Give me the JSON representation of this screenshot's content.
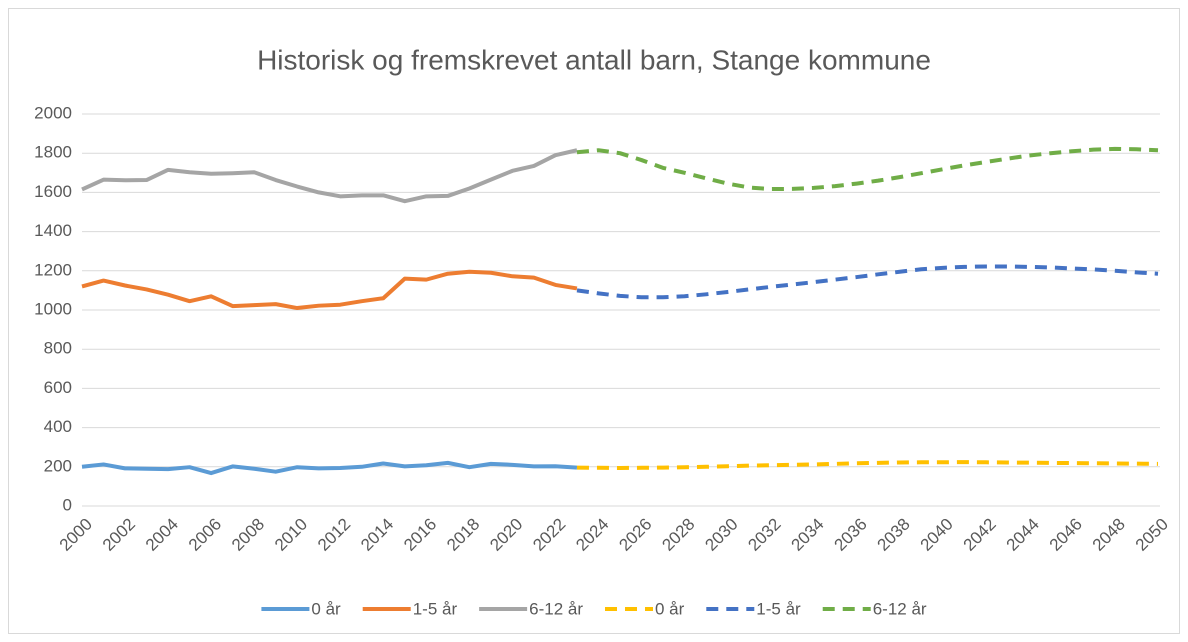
{
  "chart_data": {
    "type": "line",
    "title": "Historisk og fremskrevet antall barn, Stange kommune",
    "x": [
      2000,
      2001,
      2002,
      2003,
      2004,
      2005,
      2006,
      2007,
      2008,
      2009,
      2010,
      2011,
      2012,
      2013,
      2014,
      2015,
      2016,
      2017,
      2018,
      2019,
      2020,
      2021,
      2022,
      2023,
      2024,
      2025,
      2026,
      2027,
      2028,
      2029,
      2030,
      2031,
      2032,
      2033,
      2034,
      2035,
      2036,
      2037,
      2038,
      2039,
      2040,
      2041,
      2042,
      2043,
      2044,
      2045,
      2046,
      2047,
      2048,
      2049,
      2050
    ],
    "xlim": [
      2000,
      2050
    ],
    "xticks": [
      2000,
      2002,
      2004,
      2006,
      2008,
      2010,
      2012,
      2014,
      2016,
      2018,
      2020,
      2022,
      2024,
      2026,
      2028,
      2030,
      2032,
      2034,
      2036,
      2038,
      2040,
      2042,
      2044,
      2046,
      2048,
      2050
    ],
    "ylim": [
      0,
      2000
    ],
    "yticks": [
      0,
      200,
      400,
      600,
      800,
      1000,
      1200,
      1400,
      1600,
      1800,
      2000
    ],
    "grid": true,
    "legend": "bottom",
    "series": [
      {
        "name": "0 år",
        "color": "#5b9bd5",
        "dashed": false,
        "values": [
          200,
          212,
          192,
          190,
          188,
          198,
          168,
          202,
          190,
          175,
          198,
          192,
          194,
          200,
          217,
          202,
          208,
          220,
          198,
          215,
          210,
          202,
          203,
          196,
          null,
          null,
          null,
          null,
          null,
          null,
          null,
          null,
          null,
          null,
          null,
          null,
          null,
          null,
          null,
          null,
          null,
          null,
          null,
          null,
          null,
          null,
          null,
          null,
          null,
          null,
          null
        ]
      },
      {
        "name": "1-5 år",
        "color": "#ed7d31",
        "dashed": false,
        "values": [
          1120,
          1150,
          1125,
          1105,
          1078,
          1045,
          1070,
          1020,
          1025,
          1030,
          1010,
          1022,
          1027,
          1045,
          1060,
          1160,
          1155,
          1185,
          1195,
          1190,
          1172,
          1165,
          1128,
          1110,
          null,
          null,
          null,
          null,
          null,
          null,
          null,
          null,
          null,
          null,
          null,
          null,
          null,
          null,
          null,
          null,
          null,
          null,
          null,
          null,
          null,
          null,
          null,
          null,
          null,
          null,
          null
        ]
      },
      {
        "name": "6-12 år",
        "color": "#a5a5a5",
        "dashed": false,
        "values": [
          1615,
          1665,
          1662,
          1663,
          1715,
          1703,
          1695,
          1698,
          1703,
          1663,
          1630,
          1600,
          1580,
          1585,
          1585,
          1555,
          1580,
          1582,
          1620,
          1665,
          1710,
          1735,
          1790,
          1815,
          null,
          null,
          null,
          null,
          null,
          null,
          null,
          null,
          null,
          null,
          null,
          null,
          null,
          null,
          null,
          null,
          null,
          null,
          null,
          null,
          null,
          null,
          null,
          null,
          null,
          null,
          null
        ]
      },
      {
        "name": "0 år",
        "color": "#ffc000",
        "dashed": true,
        "values": [
          null,
          null,
          null,
          null,
          null,
          null,
          null,
          null,
          null,
          null,
          null,
          null,
          null,
          null,
          null,
          null,
          null,
          null,
          null,
          null,
          null,
          null,
          null,
          196,
          195,
          194,
          195,
          196,
          198,
          200,
          203,
          206,
          208,
          210,
          212,
          215,
          218,
          220,
          222,
          223,
          223,
          224,
          223,
          222,
          221,
          220,
          219,
          218,
          217,
          216,
          215
        ]
      },
      {
        "name": "1-5 år",
        "color": "#4472c4",
        "dashed": true,
        "values": [
          null,
          null,
          null,
          null,
          null,
          null,
          null,
          null,
          null,
          null,
          null,
          null,
          null,
          null,
          null,
          null,
          null,
          null,
          null,
          null,
          null,
          null,
          null,
          1100,
          1085,
          1072,
          1065,
          1065,
          1070,
          1080,
          1092,
          1105,
          1118,
          1130,
          1142,
          1155,
          1168,
          1182,
          1195,
          1208,
          1215,
          1220,
          1222,
          1222,
          1220,
          1217,
          1212,
          1207,
          1200,
          1192,
          1185
        ]
      },
      {
        "name": "6-12 år",
        "color": "#70ad47",
        "dashed": true,
        "values": [
          null,
          null,
          null,
          null,
          null,
          null,
          null,
          null,
          null,
          null,
          null,
          null,
          null,
          null,
          null,
          null,
          null,
          null,
          null,
          null,
          null,
          null,
          null,
          1805,
          1815,
          1800,
          1765,
          1725,
          1700,
          1672,
          1645,
          1625,
          1617,
          1618,
          1623,
          1632,
          1645,
          1660,
          1678,
          1698,
          1718,
          1738,
          1755,
          1772,
          1788,
          1800,
          1810,
          1818,
          1822,
          1820,
          1815
        ]
      }
    ]
  }
}
